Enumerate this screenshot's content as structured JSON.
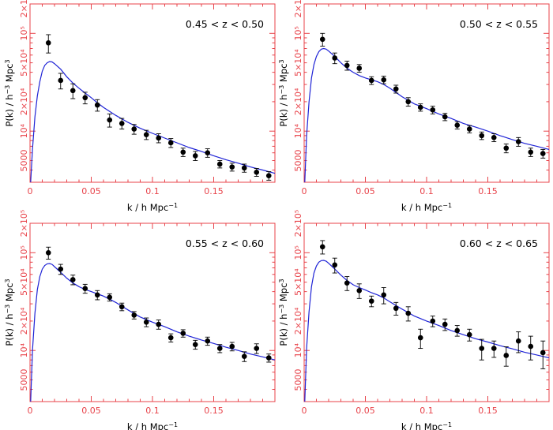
{
  "chart_data": [
    {
      "type": "scatter",
      "title": "0.45 < z < 0.50",
      "xlabel": "k / h Mpc",
      "xlabel_exp": "−1",
      "ylabel": "P(k) / h",
      "ylabel_exp": "−3",
      "ylabel_unit": "Mpc",
      "ylabel_unit_exp": "3",
      "xlim": [
        0,
        0.2
      ],
      "ylim": [
        3000,
        200000
      ],
      "yscale": "log",
      "xticks": [
        0,
        0.05,
        0.1,
        0.15
      ],
      "xtick_labels": [
        "0",
        "0.05",
        "0.1",
        "0.15"
      ],
      "yticks": [
        5000,
        10000,
        20000,
        50000,
        100000,
        200000
      ],
      "ytick_labels": [
        "5000",
        "10⁴",
        "2×10⁴",
        "5×10⁴",
        "10⁵",
        "2×10⁵"
      ],
      "series": [
        {
          "kind": "points-with-errors",
          "x": [
            0.005,
            0.015,
            0.025,
            0.035,
            0.045,
            0.055,
            0.065,
            0.075,
            0.085,
            0.095,
            0.105,
            0.115,
            0.125,
            0.135,
            0.145,
            0.155,
            0.165,
            0.175,
            0.185,
            0.195
          ],
          "y": [
            null,
            80000,
            33000,
            26000,
            22000,
            18500,
            13000,
            12000,
            10500,
            9200,
            8500,
            7600,
            6100,
            5600,
            6000,
            4600,
            4300,
            4200,
            3800,
            3500
          ],
          "err": [
            null,
            17000,
            6000,
            4500,
            3000,
            2500,
            2000,
            1500,
            1200,
            1000,
            900,
            800,
            600,
            600,
            600,
            400,
            400,
            400,
            350,
            350
          ]
        },
        {
          "kind": "line",
          "x": [
            0.0005,
            0.002,
            0.004,
            0.006,
            0.008,
            0.01,
            0.012,
            0.014,
            0.016,
            0.018,
            0.02,
            0.025,
            0.03,
            0.035,
            0.04,
            0.045,
            0.05,
            0.055,
            0.06,
            0.07,
            0.08,
            0.09,
            0.1,
            0.11,
            0.12,
            0.13,
            0.14,
            0.15,
            0.16,
            0.17,
            0.18,
            0.19,
            0.2
          ],
          "y": [
            2000,
            6500,
            14000,
            23000,
            32000,
            41000,
            47000,
            50000,
            51500,
            51000,
            49000,
            43000,
            36000,
            31000,
            27500,
            24500,
            22000,
            19500,
            17500,
            14500,
            12300,
            10700,
            9500,
            8500,
            7600,
            6800,
            6200,
            5600,
            5100,
            4700,
            4300,
            4000,
            3700
          ]
        }
      ]
    },
    {
      "type": "scatter",
      "title": "0.50 < z < 0.55",
      "xlabel": "k / h Mpc",
      "xlabel_exp": "−1",
      "ylabel": "P(k) / h",
      "ylabel_exp": "−3",
      "ylabel_unit": "Mpc",
      "ylabel_unit_exp": "3",
      "xlim": [
        0,
        0.2
      ],
      "ylim": [
        3000,
        200000
      ],
      "yscale": "log",
      "xticks": [
        0,
        0.05,
        0.1,
        0.15
      ],
      "xtick_labels": [
        "0",
        "0.05",
        "0.1",
        "0.15"
      ],
      "yticks": [
        5000,
        10000,
        20000,
        50000,
        100000,
        200000
      ],
      "ytick_labels": [
        "5000",
        "10⁴",
        "2×10⁴",
        "5×10⁴",
        "10⁵",
        "2×10⁵"
      ],
      "series": [
        {
          "kind": "points-with-errors",
          "x": [
            0.005,
            0.015,
            0.025,
            0.035,
            0.045,
            0.055,
            0.065,
            0.075,
            0.085,
            0.095,
            0.105,
            0.115,
            0.125,
            0.135,
            0.145,
            0.155,
            0.165,
            0.175,
            0.185,
            0.195
          ],
          "y": [
            null,
            87000,
            56000,
            47000,
            44000,
            33000,
            33500,
            27000,
            20000,
            17500,
            16500,
            14000,
            11500,
            10500,
            9000,
            8600,
            6700,
            7800,
            6100,
            5900
          ],
          "err": [
            null,
            13000,
            7000,
            5000,
            4000,
            3000,
            3000,
            2500,
            2000,
            1500,
            1500,
            1200,
            1000,
            900,
            800,
            800,
            700,
            800,
            600,
            600
          ]
        },
        {
          "kind": "line",
          "x": [
            0.0005,
            0.002,
            0.004,
            0.006,
            0.008,
            0.01,
            0.012,
            0.014,
            0.016,
            0.018,
            0.02,
            0.025,
            0.03,
            0.035,
            0.04,
            0.045,
            0.05,
            0.055,
            0.06,
            0.065,
            0.07,
            0.08,
            0.09,
            0.1,
            0.11,
            0.12,
            0.13,
            0.14,
            0.15,
            0.16,
            0.17,
            0.18,
            0.19,
            0.2
          ],
          "y": [
            2500,
            9000,
            20000,
            35000,
            48000,
            58000,
            65000,
            69000,
            70000,
            69000,
            66000,
            58000,
            50000,
            44000,
            40000,
            37000,
            35000,
            33500,
            32000,
            30000,
            27500,
            22500,
            19000,
            17000,
            15000,
            13500,
            12000,
            11000,
            10000,
            9000,
            8200,
            7500,
            7000,
            6500
          ]
        }
      ]
    },
    {
      "type": "scatter",
      "title": "0.55 < z < 0.60",
      "xlabel": "k / h Mpc",
      "xlabel_exp": "−1",
      "ylabel": "P(k) / h",
      "ylabel_exp": "−3",
      "ylabel_unit": "Mpc",
      "ylabel_unit_exp": "3",
      "xlim": [
        0,
        0.2
      ],
      "ylim": [
        3000,
        200000
      ],
      "yscale": "log",
      "xticks": [
        0,
        0.05,
        0.1,
        0.15
      ],
      "xtick_labels": [
        "0",
        "0.05",
        "0.1",
        "0.15"
      ],
      "yticks": [
        5000,
        10000,
        20000,
        50000,
        100000,
        200000
      ],
      "ytick_labels": [
        "5000",
        "10⁴",
        "2×10⁴",
        "5×10⁴",
        "10⁵",
        "2×10⁵"
      ],
      "series": [
        {
          "kind": "points-with-errors",
          "x": [
            0.005,
            0.015,
            0.025,
            0.035,
            0.045,
            0.055,
            0.065,
            0.075,
            0.085,
            0.095,
            0.105,
            0.115,
            0.125,
            0.135,
            0.145,
            0.155,
            0.165,
            0.175,
            0.185,
            0.195
          ],
          "y": [
            null,
            100000,
            68000,
            53000,
            43000,
            37000,
            35000,
            28000,
            23000,
            19500,
            18500,
            13500,
            15000,
            11500,
            12500,
            10500,
            11000,
            8700,
            10500,
            8400
          ],
          "err": [
            null,
            14000,
            8000,
            6000,
            4500,
            4000,
            3000,
            2500,
            2000,
            2000,
            2000,
            1300,
            1300,
            1200,
            1200,
            1000,
            1100,
            1000,
            1200,
            800
          ]
        },
        {
          "kind": "line",
          "x": [
            0.0005,
            0.002,
            0.004,
            0.006,
            0.008,
            0.01,
            0.012,
            0.014,
            0.016,
            0.018,
            0.02,
            0.025,
            0.03,
            0.035,
            0.04,
            0.045,
            0.05,
            0.055,
            0.06,
            0.065,
            0.07,
            0.08,
            0.09,
            0.1,
            0.11,
            0.12,
            0.13,
            0.14,
            0.15,
            0.16,
            0.17,
            0.18,
            0.19,
            0.2
          ],
          "y": [
            2500,
            10000,
            24000,
            42000,
            57000,
            68000,
            74000,
            77000,
            77500,
            76000,
            72000,
            63000,
            55000,
            49000,
            45000,
            42000,
            40000,
            38000,
            36000,
            33500,
            31000,
            26000,
            22000,
            19500,
            17500,
            15500,
            14000,
            12800,
            11800,
            10800,
            10000,
            9200,
            8600,
            8000
          ]
        }
      ]
    },
    {
      "type": "scatter",
      "title": "0.60 < z < 0.65",
      "xlabel": "k / h Mpc",
      "xlabel_exp": "−1",
      "ylabel": "P(k) / h",
      "ylabel_exp": "−3",
      "ylabel_unit": "Mpc",
      "ylabel_unit_exp": "3",
      "xlim": [
        0,
        0.2
      ],
      "ylim": [
        3000,
        200000
      ],
      "yscale": "log",
      "xticks": [
        0,
        0.05,
        0.1,
        0.15
      ],
      "xtick_labels": [
        "0",
        "0.05",
        "0.1",
        "0.15"
      ],
      "yticks": [
        5000,
        10000,
        20000,
        50000,
        100000,
        200000
      ],
      "ytick_labels": [
        "5000",
        "10⁴",
        "2×10⁴",
        "5×10⁴",
        "10⁵",
        "2×10⁵"
      ],
      "series": [
        {
          "kind": "points-with-errors",
          "x": [
            0.005,
            0.015,
            0.025,
            0.035,
            0.045,
            0.055,
            0.065,
            0.075,
            0.085,
            0.095,
            0.105,
            0.115,
            0.125,
            0.135,
            0.145,
            0.155,
            0.165,
            0.175,
            0.185,
            0.195
          ],
          "y": [
            null,
            115000,
            75000,
            49000,
            41000,
            32000,
            37000,
            27000,
            24000,
            13500,
            20000,
            18500,
            16000,
            14500,
            10500,
            10500,
            8900,
            12500,
            11000,
            9500
          ],
          "err": [
            null,
            18000,
            13000,
            8000,
            7000,
            4000,
            7000,
            4000,
            4000,
            3000,
            2500,
            2500,
            2000,
            2000,
            2500,
            2000,
            2000,
            3000,
            3000,
            3000
          ]
        },
        {
          "kind": "line",
          "x": [
            0.0005,
            0.002,
            0.004,
            0.006,
            0.008,
            0.01,
            0.012,
            0.014,
            0.016,
            0.018,
            0.02,
            0.025,
            0.03,
            0.035,
            0.04,
            0.045,
            0.05,
            0.055,
            0.06,
            0.065,
            0.07,
            0.08,
            0.09,
            0.1,
            0.11,
            0.12,
            0.13,
            0.14,
            0.15,
            0.16,
            0.17,
            0.18,
            0.19,
            0.2
          ],
          "y": [
            2500,
            10500,
            25000,
            45000,
            62000,
            73000,
            80000,
            83000,
            83500,
            82000,
            78000,
            68000,
            59000,
            52000,
            47000,
            44000,
            41500,
            39000,
            37000,
            34500,
            31500,
            26500,
            22500,
            20000,
            18000,
            16000,
            14500,
            13200,
            12200,
            11200,
            10400,
            9600,
            9000,
            8400
          ]
        }
      ]
    }
  ]
}
